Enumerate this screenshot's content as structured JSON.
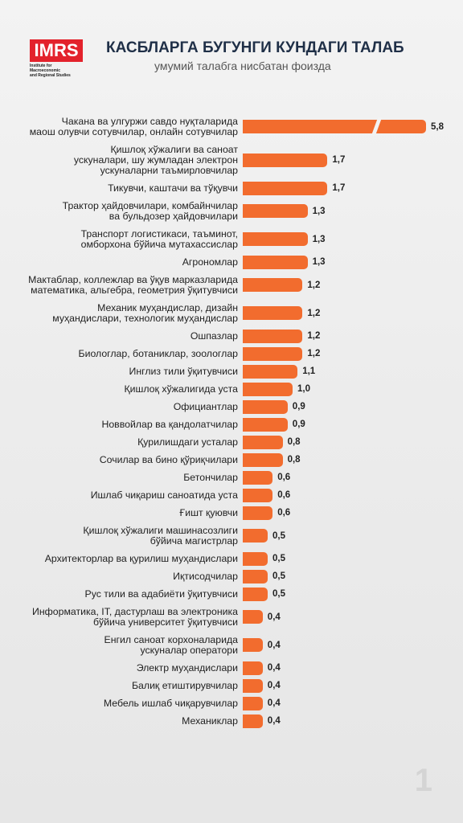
{
  "logo": {
    "text": "IMRS",
    "caption": "Institute for Macroeconomic\nand Regional Studies"
  },
  "page_number": "1",
  "chart_data": {
    "type": "hbar",
    "title": "КАСБЛАРГА БУГУНГИ КУНДАГИ ТАЛАБ",
    "subtitle": "умумий талабга нисбатан фоизда",
    "color": "#f26c2e",
    "categories": [
      "Чакана ва улгуржи савдо нуқталарида\nмаош олувчи сотувчилар, онлайн сотувчилар",
      "Қишлоқ хўжалиги ва саноат\nускуналари, шу жумладан электрон\nускуналарни таъмирловчилар",
      "Тикувчи, каштачи ва тўқувчи",
      "Трактор ҳайдовчилари, комбайнчилар\nва бульдозер ҳайдовчилари",
      "Транспорт логистикаси, таъминот,\nомборхона бўйича мутахассислар",
      "Агрономлар",
      "Мактаблар, коллежлар ва ўқув марказларида\nматематика, альгебра, геометрия ўқитувчиси",
      "Механик муҳандислар, дизайн\nмуҳандислари, технологик муҳандислар",
      "Ошпазлар",
      "Биологлар, ботаниклар, зоологлар",
      "Инглиз тили ўқитувчиси",
      "Қишлоқ хўжалигида уста",
      "Официантлар",
      "Новвойлар ва қандолатчилар",
      "Қурилишдаги усталар",
      "Сочилар ва бино қўриқчилари",
      "Бетончилар",
      "Ишлаб чиқариш саноатида уста",
      "Ғишт қуювчи",
      "Қишлоқ хўжалиги машинасозлиги\nбўйича магистрлар",
      "Архитекторлар ва қурилиш муҳандислари",
      "Иқтисодчилар",
      "Рус тили ва адабиёти ўқитувчиси",
      "Информатика, IT, дастурлаш ва электроника\nбўйича университет ўқитувчиси",
      "Енгил саноат корхоналарида\nускуналар оператори",
      "Электр муҳандислари",
      "Балиқ етиштирувчилар",
      "Мебель ишлаб чиқарувчилар",
      "Механиклар"
    ],
    "values": [
      5.8,
      1.7,
      1.7,
      1.3,
      1.3,
      1.3,
      1.2,
      1.2,
      1.2,
      1.2,
      1.1,
      1.0,
      0.9,
      0.9,
      0.8,
      0.8,
      0.6,
      0.6,
      0.6,
      0.5,
      0.5,
      0.5,
      0.5,
      0.4,
      0.4,
      0.4,
      0.4,
      0.4,
      0.4
    ],
    "value_labels": [
      "5,8",
      "1,7",
      "1,7",
      "1,3",
      "1,3",
      "1,3",
      "1,2",
      "1,2",
      "1,2",
      "1,2",
      "1,1",
      "1,0",
      "0,9",
      "0,9",
      "0,8",
      "0,8",
      "0,6",
      "0,6",
      "0,6",
      "0,5",
      "0,5",
      "0,5",
      "0,5",
      "0,4",
      "0,4",
      "0,4",
      "0,4",
      "0,4",
      "0,4"
    ]
  }
}
